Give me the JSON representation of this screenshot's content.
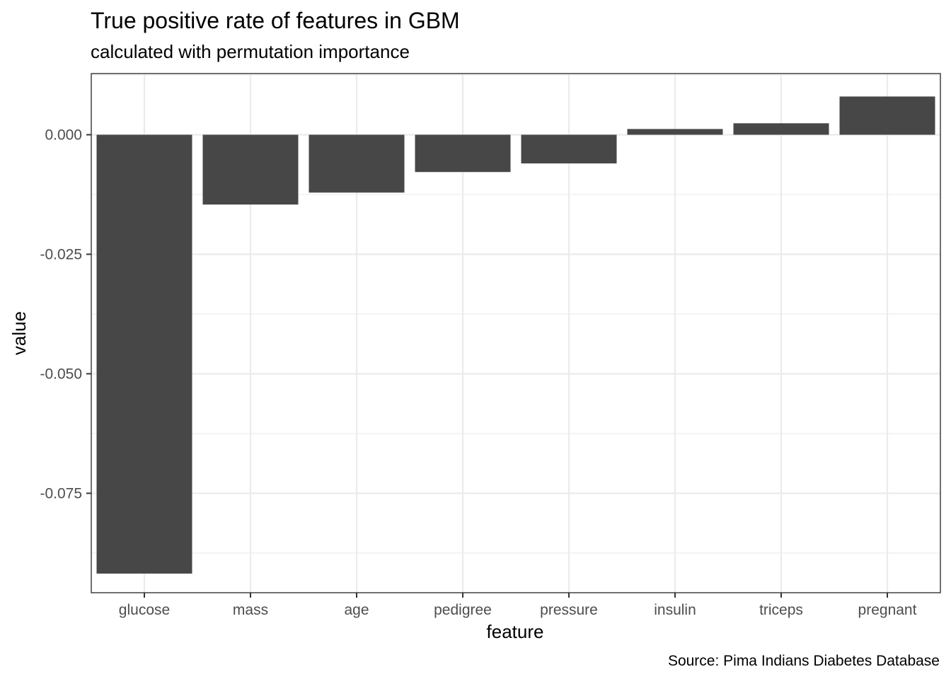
{
  "chart_data": {
    "type": "bar",
    "title": "True positive rate of features in GBM",
    "subtitle": "calculated with permutation importance",
    "caption": "Source: Pima Indians Diabetes Database",
    "xlabel": "feature",
    "ylabel": "value",
    "categories": [
      "glucose",
      "mass",
      "age",
      "pedigree",
      "pressure",
      "insulin",
      "triceps",
      "pregnant"
    ],
    "values": [
      -0.0918,
      -0.0146,
      -0.0121,
      -0.0078,
      -0.006,
      0.0012,
      0.0024,
      0.008
    ],
    "ylim": [
      -0.0958,
      0.0128
    ],
    "yticks": [
      0.0,
      -0.025,
      -0.05,
      -0.075
    ],
    "ytick_labels": [
      "0.000",
      "-0.025",
      "-0.050",
      "-0.075"
    ],
    "bar_color": "#474747",
    "grid": true,
    "legend": "none",
    "theme": "bw"
  }
}
